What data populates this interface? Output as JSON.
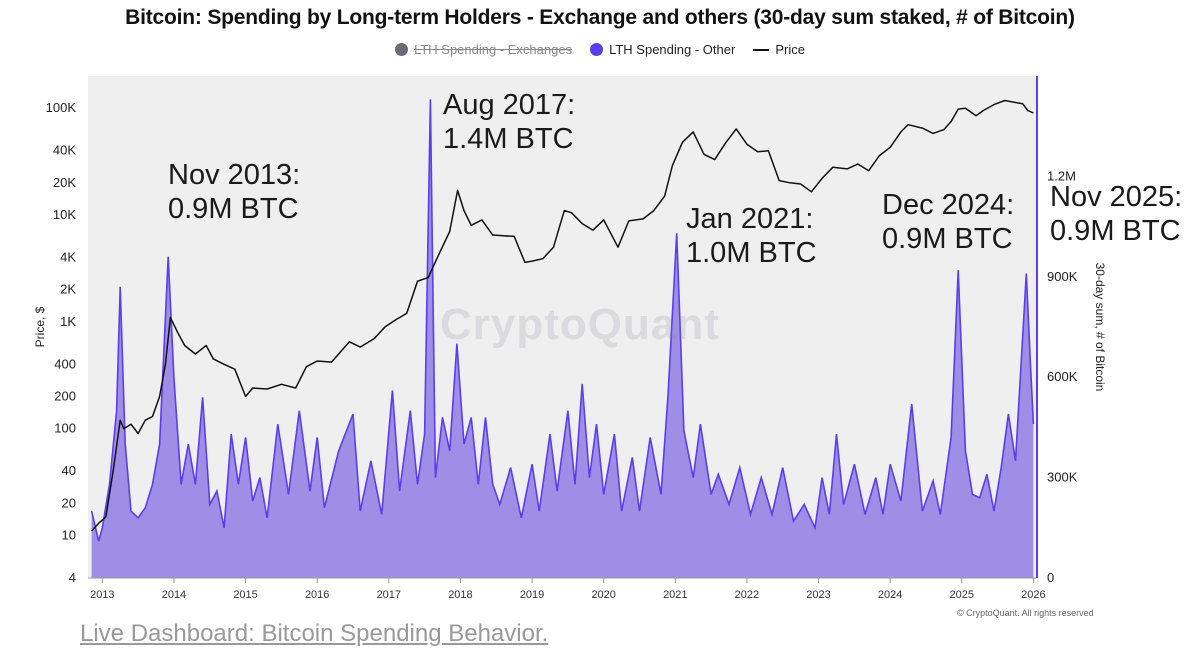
{
  "title": "Bitcoin: Spending by Long-term Holders - Exchange and others (30-day sum staked, # of Bitcoin)",
  "legend": [
    {
      "label": "LTH Spending - Exchanges",
      "color": "#6b6b73",
      "enabled": false
    },
    {
      "label": "LTH Spending - Other",
      "color": "#5b3df0",
      "enabled": true
    },
    {
      "label": "Price",
      "color": "#111111",
      "enabled": true
    }
  ],
  "watermark": "CryptoQuant",
  "copyright": "© CryptoQuant. All rights reserved",
  "footer_link": "Live Dashboard: Bitcoin Spending Behavior.",
  "annotations": [
    {
      "text": "Nov 2013:\n0.9M BTC"
    },
    {
      "text": "Aug 2017:\n1.4M BTC"
    },
    {
      "text": "Jan 2021:\n1.0M BTC"
    },
    {
      "text": "Dec 2024:\n0.9M BTC"
    },
    {
      "text": "Nov 2025:\n0.9M BTC"
    }
  ],
  "chart_data": {
    "type": "area",
    "x_ticks": [
      "2013",
      "2014",
      "2015",
      "2016",
      "2017",
      "2018",
      "2019",
      "2020",
      "2021",
      "2022",
      "2023",
      "2024",
      "2025",
      "2026"
    ],
    "left_axis": {
      "label": "Price, $",
      "scale": "log",
      "range": [
        4,
        200000
      ],
      "ticks": [
        "4",
        "10",
        "20",
        "40",
        "100",
        "200",
        "400",
        "1K",
        "2K",
        "4K",
        "10K",
        "20K",
        "40K",
        "100K"
      ]
    },
    "right_axis": {
      "label": "30-day sum, # of Bitcoin",
      "range": [
        0,
        1500000
      ],
      "ticks": [
        "0",
        "300K",
        "600K",
        "900K",
        "1.2M"
      ]
    },
    "grid": false,
    "series": [
      {
        "name": "LTH Spending - Other",
        "axis": "right",
        "color": "#5b3df0",
        "points": [
          [
            2012.85,
            200000
          ],
          [
            2012.95,
            110000
          ],
          [
            2013.0,
            150000
          ],
          [
            2013.1,
            280000
          ],
          [
            2013.2,
            500000
          ],
          [
            2013.25,
            870000
          ],
          [
            2013.32,
            400000
          ],
          [
            2013.4,
            200000
          ],
          [
            2013.5,
            180000
          ],
          [
            2013.6,
            210000
          ],
          [
            2013.7,
            280000
          ],
          [
            2013.8,
            400000
          ],
          [
            2013.92,
            960000
          ],
          [
            2014.0,
            600000
          ],
          [
            2014.1,
            280000
          ],
          [
            2014.2,
            400000
          ],
          [
            2014.3,
            280000
          ],
          [
            2014.4,
            540000
          ],
          [
            2014.5,
            220000
          ],
          [
            2014.6,
            260000
          ],
          [
            2014.7,
            150000
          ],
          [
            2014.8,
            430000
          ],
          [
            2014.9,
            280000
          ],
          [
            2015.0,
            420000
          ],
          [
            2015.1,
            230000
          ],
          [
            2015.2,
            300000
          ],
          [
            2015.3,
            180000
          ],
          [
            2015.45,
            460000
          ],
          [
            2015.6,
            250000
          ],
          [
            2015.75,
            500000
          ],
          [
            2015.9,
            260000
          ],
          [
            2016.0,
            420000
          ],
          [
            2016.1,
            210000
          ],
          [
            2016.3,
            380000
          ],
          [
            2016.5,
            490000
          ],
          [
            2016.6,
            200000
          ],
          [
            2016.75,
            350000
          ],
          [
            2016.9,
            190000
          ],
          [
            2017.05,
            560000
          ],
          [
            2017.15,
            260000
          ],
          [
            2017.3,
            500000
          ],
          [
            2017.4,
            280000
          ],
          [
            2017.5,
            430000
          ],
          [
            2017.58,
            1430000
          ],
          [
            2017.65,
            300000
          ],
          [
            2017.75,
            480000
          ],
          [
            2017.85,
            380000
          ],
          [
            2017.95,
            700000
          ],
          [
            2018.05,
            400000
          ],
          [
            2018.15,
            480000
          ],
          [
            2018.25,
            280000
          ],
          [
            2018.35,
            480000
          ],
          [
            2018.45,
            280000
          ],
          [
            2018.55,
            220000
          ],
          [
            2018.7,
            330000
          ],
          [
            2018.85,
            180000
          ],
          [
            2019.0,
            340000
          ],
          [
            2019.1,
            200000
          ],
          [
            2019.25,
            430000
          ],
          [
            2019.35,
            260000
          ],
          [
            2019.5,
            500000
          ],
          [
            2019.6,
            280000
          ],
          [
            2019.7,
            580000
          ],
          [
            2019.8,
            300000
          ],
          [
            2019.9,
            460000
          ],
          [
            2020.0,
            250000
          ],
          [
            2020.15,
            430000
          ],
          [
            2020.25,
            200000
          ],
          [
            2020.4,
            360000
          ],
          [
            2020.5,
            200000
          ],
          [
            2020.65,
            420000
          ],
          [
            2020.8,
            250000
          ],
          [
            2020.9,
            550000
          ],
          [
            2021.02,
            1030000
          ],
          [
            2021.12,
            440000
          ],
          [
            2021.25,
            300000
          ],
          [
            2021.35,
            460000
          ],
          [
            2021.5,
            250000
          ],
          [
            2021.6,
            310000
          ],
          [
            2021.75,
            220000
          ],
          [
            2021.9,
            330000
          ],
          [
            2022.05,
            190000
          ],
          [
            2022.2,
            300000
          ],
          [
            2022.35,
            190000
          ],
          [
            2022.5,
            330000
          ],
          [
            2022.65,
            170000
          ],
          [
            2022.8,
            220000
          ],
          [
            2022.95,
            150000
          ],
          [
            2023.05,
            300000
          ],
          [
            2023.15,
            190000
          ],
          [
            2023.25,
            430000
          ],
          [
            2023.35,
            220000
          ],
          [
            2023.5,
            340000
          ],
          [
            2023.65,
            190000
          ],
          [
            2023.8,
            300000
          ],
          [
            2023.9,
            190000
          ],
          [
            2024.0,
            340000
          ],
          [
            2024.15,
            230000
          ],
          [
            2024.3,
            520000
          ],
          [
            2024.45,
            200000
          ],
          [
            2024.6,
            290000
          ],
          [
            2024.7,
            190000
          ],
          [
            2024.85,
            420000
          ],
          [
            2024.95,
            920000
          ],
          [
            2025.05,
            380000
          ],
          [
            2025.15,
            250000
          ],
          [
            2025.25,
            240000
          ],
          [
            2025.35,
            310000
          ],
          [
            2025.45,
            200000
          ],
          [
            2025.55,
            330000
          ],
          [
            2025.65,
            490000
          ],
          [
            2025.75,
            350000
          ],
          [
            2025.9,
            910000
          ],
          [
            2025.96,
            630000
          ],
          [
            2026.0,
            460000
          ]
        ]
      },
      {
        "name": "Price",
        "axis": "left",
        "color": "#111111",
        "points": [
          [
            2012.85,
            11
          ],
          [
            2012.95,
            13
          ],
          [
            2013.05,
            15
          ],
          [
            2013.15,
            40
          ],
          [
            2013.25,
            120
          ],
          [
            2013.3,
            100
          ],
          [
            2013.4,
            110
          ],
          [
            2013.5,
            90
          ],
          [
            2013.6,
            120
          ],
          [
            2013.7,
            130
          ],
          [
            2013.8,
            200
          ],
          [
            2013.88,
            400
          ],
          [
            2013.95,
            1100
          ],
          [
            2014.05,
            800
          ],
          [
            2014.15,
            600
          ],
          [
            2014.3,
            500
          ],
          [
            2014.45,
            600
          ],
          [
            2014.55,
            450
          ],
          [
            2014.7,
            400
          ],
          [
            2014.85,
            360
          ],
          [
            2015.0,
            200
          ],
          [
            2015.1,
            240
          ],
          [
            2015.3,
            235
          ],
          [
            2015.5,
            260
          ],
          [
            2015.7,
            240
          ],
          [
            2015.85,
            380
          ],
          [
            2016.0,
            430
          ],
          [
            2016.2,
            420
          ],
          [
            2016.45,
            650
          ],
          [
            2016.6,
            580
          ],
          [
            2016.8,
            700
          ],
          [
            2016.95,
            900
          ],
          [
            2017.1,
            1050
          ],
          [
            2017.25,
            1200
          ],
          [
            2017.4,
            2400
          ],
          [
            2017.55,
            2600
          ],
          [
            2017.7,
            4300
          ],
          [
            2017.85,
            7000
          ],
          [
            2017.96,
            17000
          ],
          [
            2018.05,
            11000
          ],
          [
            2018.15,
            8000
          ],
          [
            2018.3,
            9000
          ],
          [
            2018.45,
            6500
          ],
          [
            2018.6,
            6400
          ],
          [
            2018.75,
            6300
          ],
          [
            2018.9,
            3600
          ],
          [
            2019.0,
            3700
          ],
          [
            2019.15,
            3900
          ],
          [
            2019.3,
            5000
          ],
          [
            2019.45,
            11000
          ],
          [
            2019.55,
            10500
          ],
          [
            2019.7,
            8300
          ],
          [
            2019.85,
            7200
          ],
          [
            2020.0,
            9000
          ],
          [
            2020.2,
            5000
          ],
          [
            2020.35,
            8800
          ],
          [
            2020.55,
            9200
          ],
          [
            2020.7,
            11000
          ],
          [
            2020.85,
            15000
          ],
          [
            2020.96,
            29000
          ],
          [
            2021.1,
            48000
          ],
          [
            2021.25,
            60000
          ],
          [
            2021.4,
            37000
          ],
          [
            2021.55,
            33000
          ],
          [
            2021.7,
            47000
          ],
          [
            2021.85,
            64000
          ],
          [
            2022.0,
            46000
          ],
          [
            2022.15,
            39000
          ],
          [
            2022.3,
            40000
          ],
          [
            2022.45,
            21000
          ],
          [
            2022.6,
            20000
          ],
          [
            2022.75,
            19500
          ],
          [
            2022.9,
            16500
          ],
          [
            2023.05,
            22000
          ],
          [
            2023.2,
            28000
          ],
          [
            2023.4,
            27000
          ],
          [
            2023.55,
            30000
          ],
          [
            2023.7,
            26000
          ],
          [
            2023.85,
            36000
          ],
          [
            2024.0,
            43000
          ],
          [
            2024.15,
            60000
          ],
          [
            2024.25,
            70000
          ],
          [
            2024.45,
            65000
          ],
          [
            2024.6,
            58000
          ],
          [
            2024.75,
            63000
          ],
          [
            2024.85,
            75000
          ],
          [
            2024.95,
            98000
          ],
          [
            2025.05,
            100000
          ],
          [
            2025.2,
            85000
          ],
          [
            2025.3,
            95000
          ],
          [
            2025.45,
            108000
          ],
          [
            2025.6,
            118000
          ],
          [
            2025.75,
            113000
          ],
          [
            2025.85,
            110000
          ],
          [
            2025.92,
            95000
          ],
          [
            2026.0,
            90000
          ]
        ]
      }
    ]
  }
}
